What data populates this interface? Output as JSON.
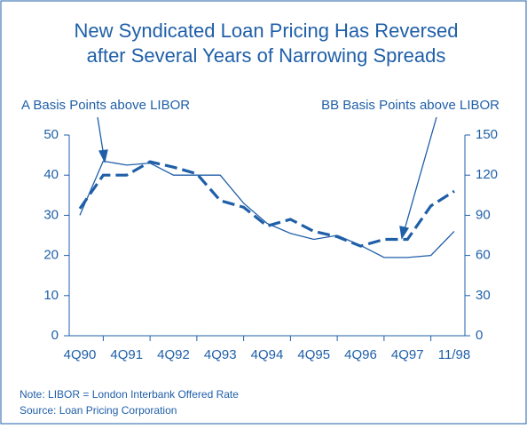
{
  "chart_data": {
    "type": "line",
    "title": [
      "New Syndicated Loan Pricing Has Reversed",
      "after Several Years of Narrowing Spreads"
    ],
    "categories": [
      "4Q90",
      null,
      "4Q91",
      null,
      "4Q92",
      null,
      "4Q93",
      null,
      "4Q94",
      null,
      "4Q95",
      null,
      "4Q96",
      null,
      "4Q97",
      null,
      "11/98"
    ],
    "series": [
      {
        "name": "A Basis Points above LIBOR",
        "color": "#1f5fa8",
        "style": "solid",
        "axis": "y",
        "values": [
          30,
          43.5,
          42.5,
          43,
          40,
          40,
          40,
          33,
          28,
          25.5,
          24,
          25,
          22.5,
          19.5,
          19.5,
          20,
          26
        ]
      },
      {
        "name": "BB Basis Points above LIBOR",
        "color": "#1f5fa8",
        "style": "dashed",
        "axis": "y2",
        "values": [
          95,
          120,
          120,
          130,
          126,
          121,
          101,
          96,
          82,
          87,
          78,
          74,
          67,
          72,
          72,
          97,
          108
        ]
      }
    ],
    "ylim": [
      0,
      50
    ],
    "yticks": [
      0,
      10,
      20,
      30,
      40,
      50
    ],
    "y2lim": [
      0,
      150
    ],
    "y2ticks": [
      0,
      30,
      60,
      90,
      120,
      150
    ],
    "notes": [
      "Note: LIBOR = London Interbank Offered Rate",
      "Source: Loan Pricing Corporation"
    ]
  }
}
